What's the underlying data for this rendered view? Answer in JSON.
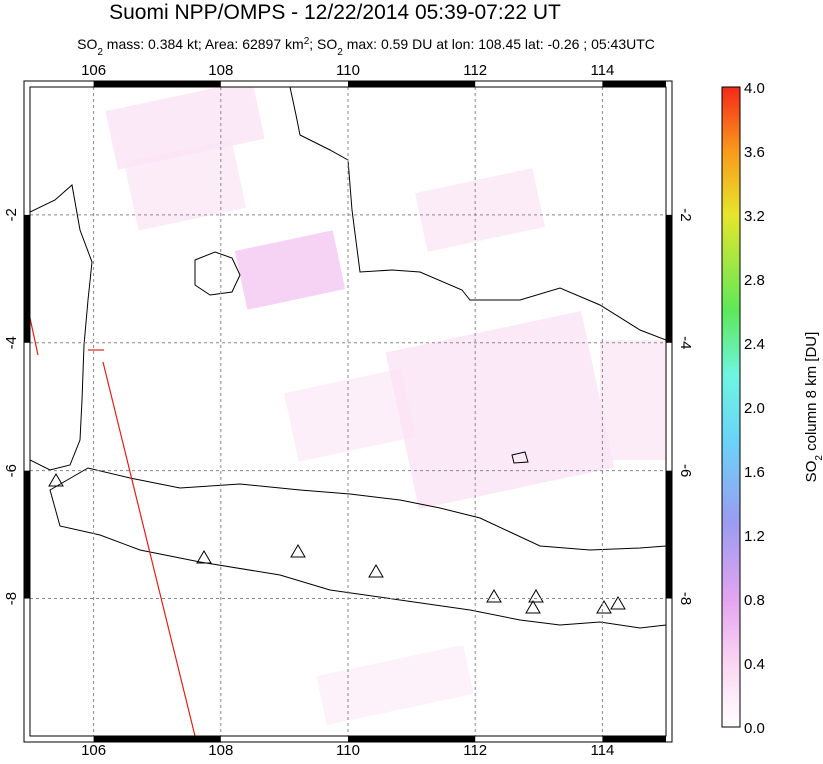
{
  "map": {
    "title": "Suomi NPP/OMPS - 12/22/2014 05:39-07:22 UT",
    "subtitle": [
      {
        "text": "SO"
      },
      {
        "text": "2",
        "sub": true
      },
      {
        "text": " mass: 0.384 kt; Area: 62897 km"
      },
      {
        "text": "2",
        "sup": true
      },
      {
        "text": "; SO"
      },
      {
        "text": "2",
        "sub": true
      },
      {
        "text": " max: 0.59 DU at lon: 108.45 lat: -0.26 ; 05:43UTC"
      }
    ],
    "xlim": [
      105,
      115
    ],
    "ylim": [
      -10.15,
      0
    ],
    "xticks": [
      106,
      108,
      110,
      112,
      114
    ],
    "yticks": [
      -2,
      -4,
      -6,
      -8
    ],
    "colorbar": {
      "label": [
        {
          "text": "SO"
        },
        {
          "text": "2",
          "sub": true
        },
        {
          "text": " column 8 km [DU]"
        }
      ],
      "lim": [
        0,
        4
      ],
      "ticks": [
        {
          "value": 0,
          "label": "0.0"
        },
        {
          "value": 0.4,
          "label": "0.4"
        },
        {
          "value": 0.8,
          "label": "0.8"
        },
        {
          "value": 1.2,
          "label": "1.2"
        },
        {
          "value": 1.6,
          "label": "1.6"
        },
        {
          "value": 2,
          "label": "2.0"
        },
        {
          "value": 2.4,
          "label": "2.4"
        },
        {
          "value": 2.8,
          "label": "2.8"
        },
        {
          "value": 3.2,
          "label": "3.2"
        },
        {
          "value": 3.6,
          "label": "3.6"
        },
        {
          "value": 4,
          "label": "4.0"
        }
      ]
    }
  }
}
